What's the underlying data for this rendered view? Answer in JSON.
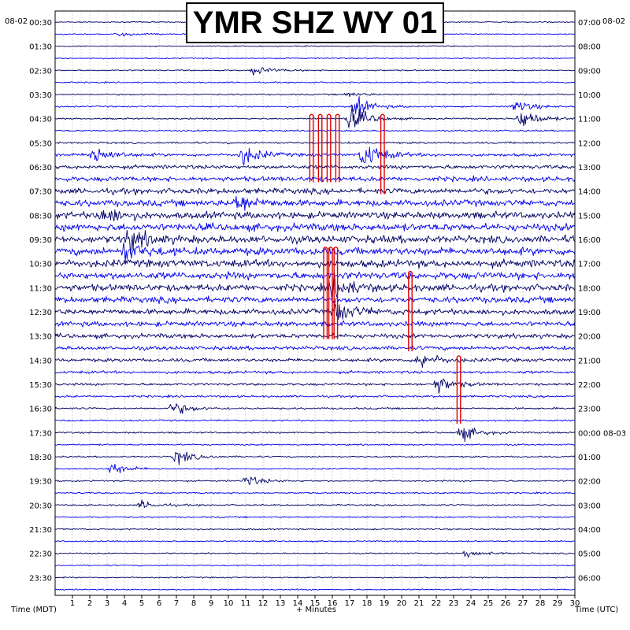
{
  "title": "YMR SHZ WY 01",
  "date_left": "08-02",
  "date_right": "08-02",
  "date_right_after_midnight": "08-03",
  "xlabel_left": "Time (MDT)",
  "xlabel_center": "+ Minutes",
  "xlabel_right": "Time (UTC)",
  "chart_data": {
    "type": "line",
    "title": "YMR SHZ WY 01",
    "xlabel": "+ Minutes",
    "ylabel_left": "Time (MDT)",
    "ylabel_right": "Time (UTC)",
    "xlim": [
      0,
      30
    ],
    "x_ticks": [
      1,
      2,
      3,
      4,
      5,
      6,
      7,
      8,
      9,
      10,
      11,
      12,
      13,
      14,
      15,
      16,
      17,
      18,
      19,
      20,
      21,
      22,
      23,
      24,
      25,
      26,
      27,
      28,
      29,
      30
    ],
    "left_labels": [
      "00:30",
      "01:30",
      "02:30",
      "03:30",
      "04:30",
      "05:30",
      "06:30",
      "07:30",
      "08:30",
      "09:30",
      "10:30",
      "11:30",
      "12:30",
      "13:30",
      "14:30",
      "15:30",
      "16:30",
      "17:30",
      "18:30",
      "19:30",
      "20:30",
      "21:30",
      "22:30",
      "23:30"
    ],
    "right_labels": [
      "07:00",
      "08:00",
      "09:00",
      "10:00",
      "11:00",
      "12:00",
      "13:00",
      "14:00",
      "15:00",
      "16:00",
      "17:00",
      "18:00",
      "19:00",
      "20:00",
      "21:00",
      "22:00",
      "23:00",
      "00:00",
      "01:00",
      "02:00",
      "03:00",
      "04:00",
      "05:00",
      "06:00"
    ],
    "trace_count": 48,
    "trace_interval_minutes": 30,
    "trace_colors": [
      "#000066",
      "#0000ee"
    ],
    "clip_color": "#dd0000",
    "grid": true,
    "activity_profile": [
      0.02,
      0.03,
      0.03,
      0.04,
      0.05,
      0.06,
      0.08,
      0.09,
      0.09,
      0.1,
      0.15,
      0.3,
      0.45,
      0.6,
      0.72,
      0.82,
      0.9,
      0.98,
      1.0,
      1.0,
      1.0,
      0.95,
      0.9,
      0.8,
      0.72,
      0.62,
      0.55,
      0.45,
      0.38,
      0.28,
      0.22,
      0.18,
      0.15,
      0.12,
      0.1,
      0.09,
      0.08,
      0.08,
      0.1,
      0.09,
      0.08,
      0.09,
      0.08,
      0.07,
      0.07,
      0.06,
      0.05,
      0.05
    ],
    "events": [
      {
        "trace": 1,
        "minute": 3.6,
        "amplitude": 0.4
      },
      {
        "trace": 4,
        "minute": 11.5,
        "amplitude": 0.7
      },
      {
        "trace": 6,
        "minute": 16.8,
        "amplitude": 0.35
      },
      {
        "trace": 7,
        "minute": 17.3,
        "amplitude": 1.4
      },
      {
        "trace": 7,
        "minute": 26.5,
        "amplitude": 1.0
      },
      {
        "trace": 8,
        "minute": 17.0,
        "amplitude": 2.0
      },
      {
        "trace": 8,
        "minute": 26.8,
        "amplitude": 1.8
      },
      {
        "trace": 11,
        "minute": 2.1,
        "amplitude": 1.6
      },
      {
        "trace": 11,
        "minute": 10.8,
        "amplitude": 1.5
      },
      {
        "trace": 11,
        "minute": 17.8,
        "amplitude": 2.2
      },
      {
        "trace": 15,
        "minute": 10.5,
        "amplitude": 1.4
      },
      {
        "trace": 16,
        "minute": 2.8,
        "amplitude": 1.2
      },
      {
        "trace": 18,
        "minute": 4.2,
        "amplitude": 1.6
      },
      {
        "trace": 19,
        "minute": 4.0,
        "amplitude": 1.3
      },
      {
        "trace": 22,
        "minute": 16.0,
        "amplitude": 1.8
      },
      {
        "trace": 24,
        "minute": 16.2,
        "amplitude": 1.6
      },
      {
        "trace": 28,
        "minute": 21.0,
        "amplitude": 1.3
      },
      {
        "trace": 30,
        "minute": 22.0,
        "amplitude": 1.4
      },
      {
        "trace": 32,
        "minute": 6.8,
        "amplitude": 1.0
      },
      {
        "trace": 34,
        "minute": 23.4,
        "amplitude": 1.2
      },
      {
        "trace": 36,
        "minute": 7.0,
        "amplitude": 1.1
      },
      {
        "trace": 37,
        "minute": 3.2,
        "amplitude": 0.9
      },
      {
        "trace": 38,
        "minute": 11.0,
        "amplitude": 0.8
      },
      {
        "trace": 40,
        "minute": 5.0,
        "amplitude": 0.6
      },
      {
        "trace": 44,
        "minute": 23.8,
        "amplitude": 0.6
      }
    ],
    "clips": [
      {
        "from_trace": 8,
        "to_trace": 13,
        "minute": 14.8
      },
      {
        "from_trace": 8,
        "to_trace": 13,
        "minute": 15.3
      },
      {
        "from_trace": 8,
        "to_trace": 13,
        "minute": 15.8
      },
      {
        "from_trace": 8,
        "to_trace": 13,
        "minute": 16.3
      },
      {
        "from_trace": 8,
        "to_trace": 14,
        "minute": 18.9
      },
      {
        "from_trace": 19,
        "to_trace": 26,
        "minute": 15.6
      },
      {
        "from_trace": 19,
        "to_trace": 26,
        "minute": 15.9
      },
      {
        "from_trace": 19,
        "to_trace": 26,
        "minute": 16.2
      },
      {
        "from_trace": 21,
        "to_trace": 27,
        "minute": 20.5
      },
      {
        "from_trace": 28,
        "to_trace": 33,
        "minute": 23.3
      }
    ]
  }
}
